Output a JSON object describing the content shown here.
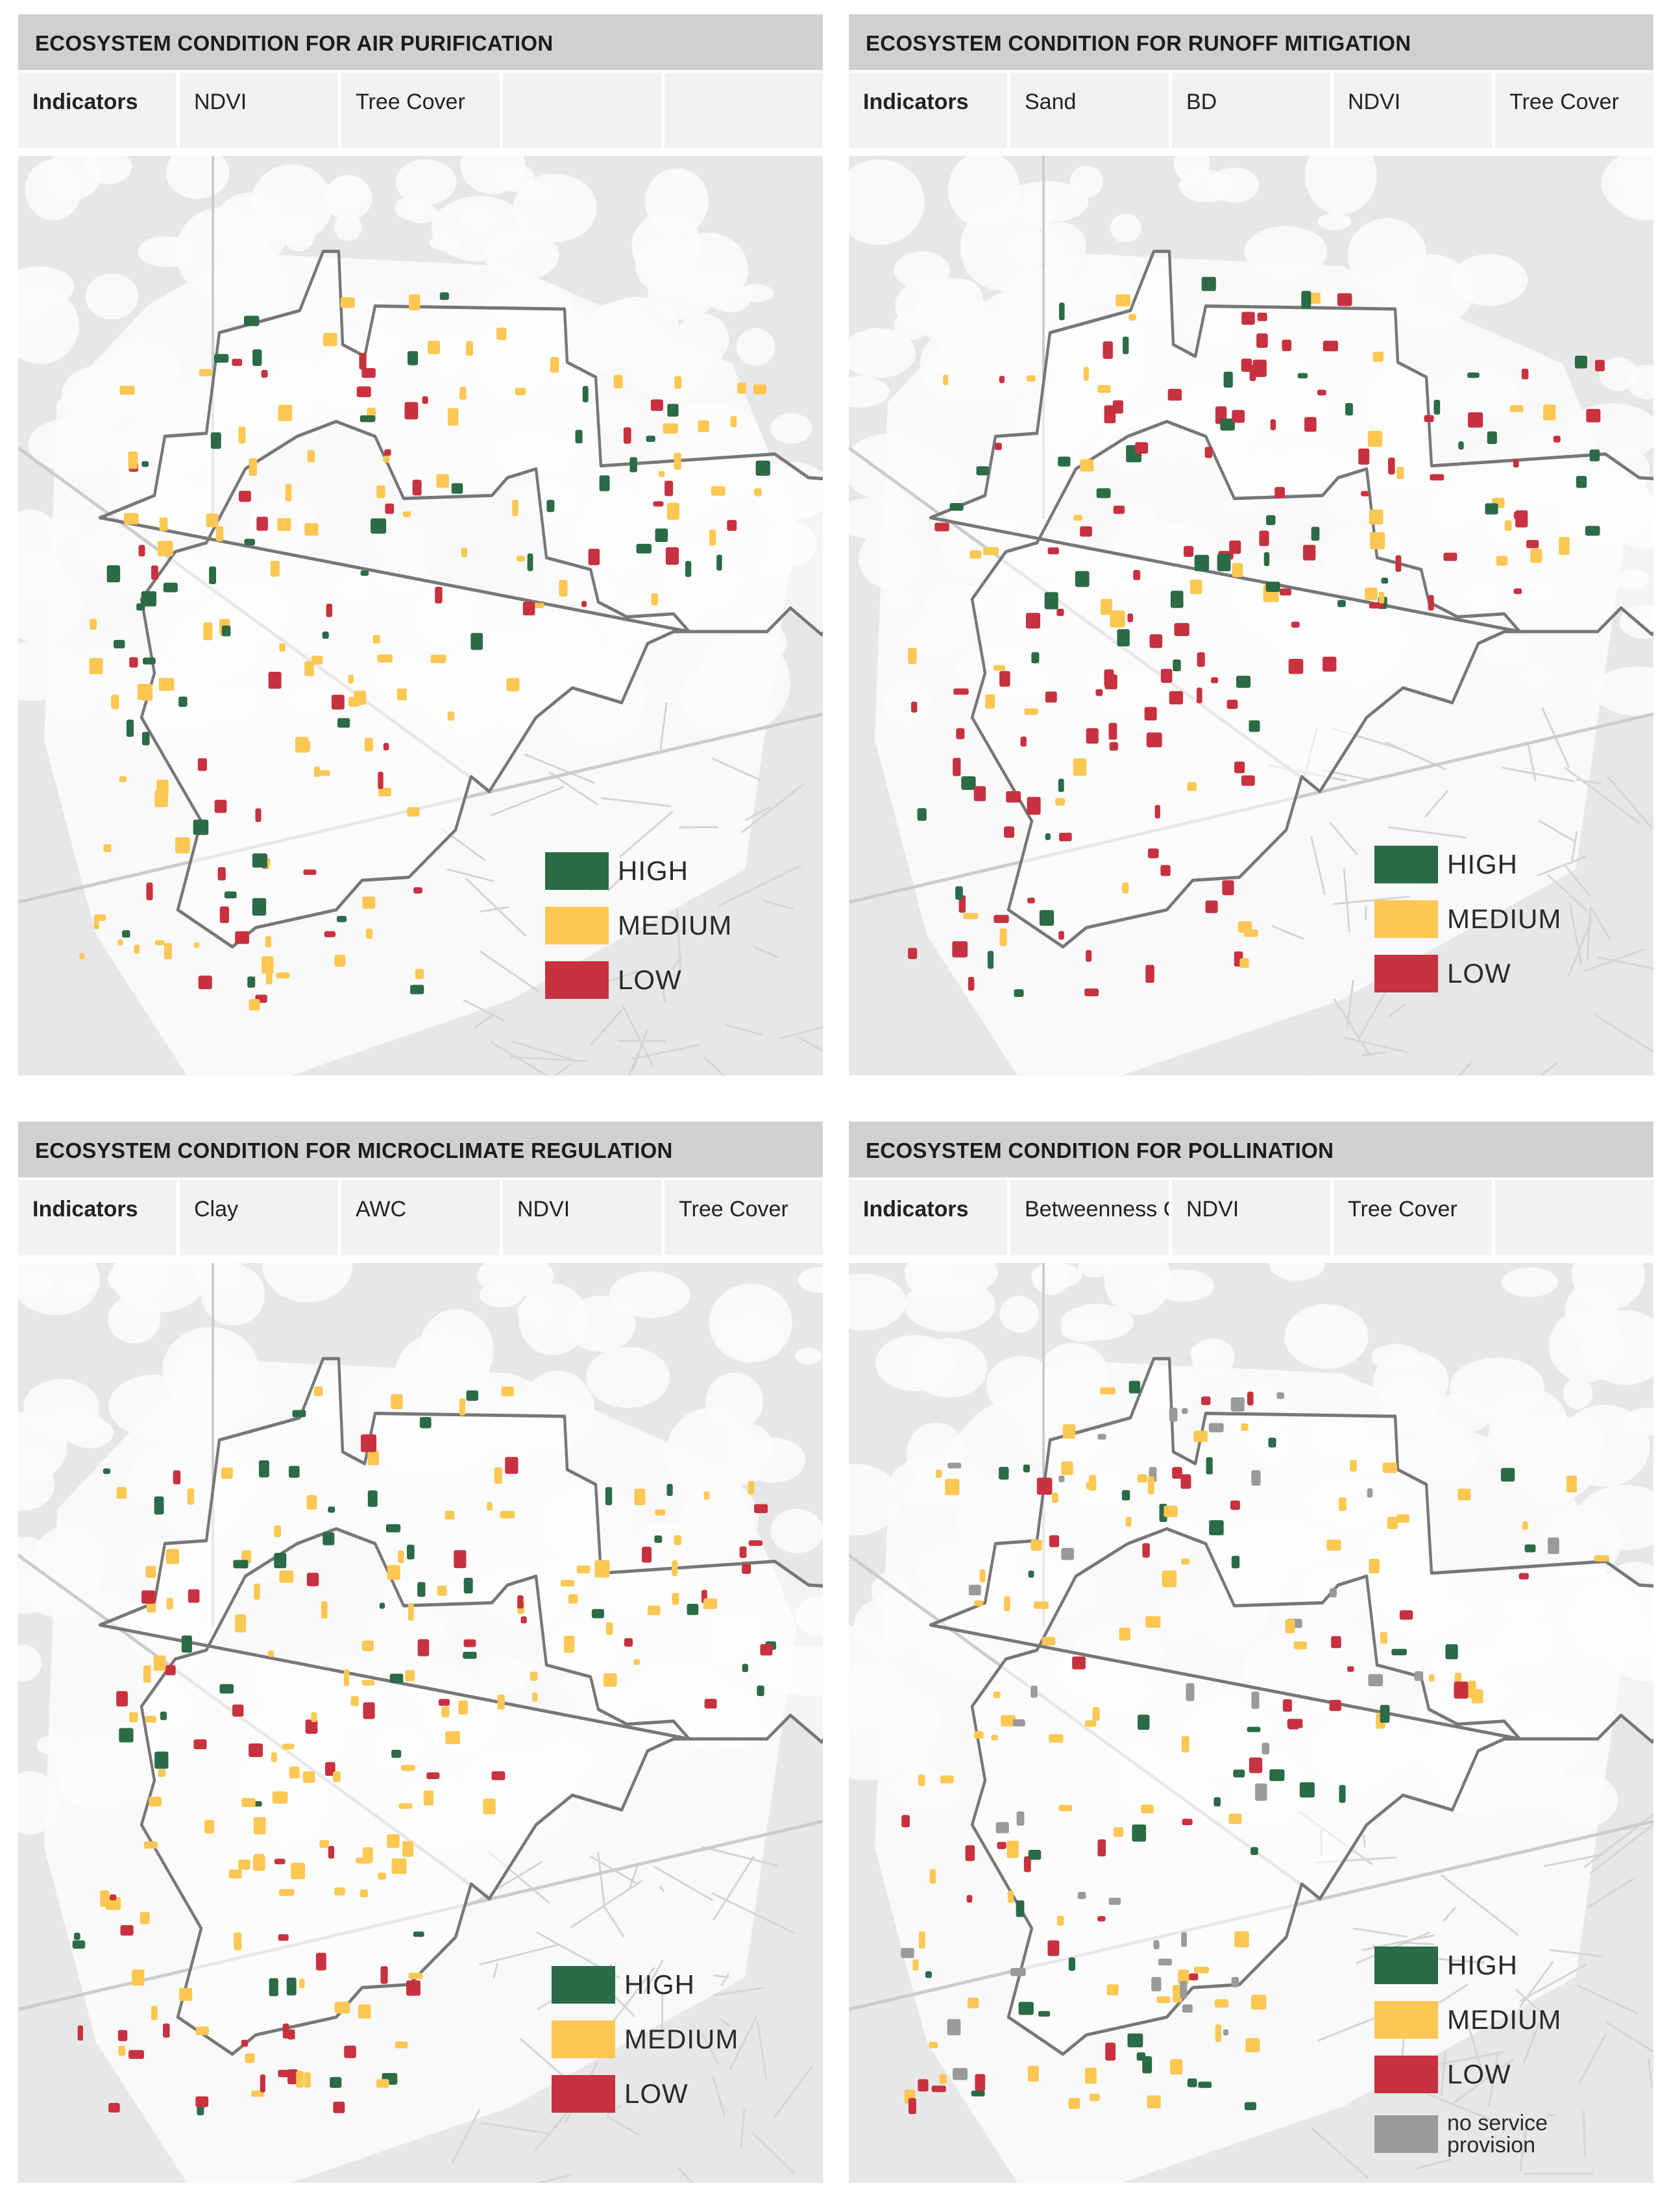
{
  "colors": {
    "high": "#2b6b45",
    "medium": "#fcc752",
    "low": "#c8313f",
    "none": "#9a9a9a",
    "boundary": "#777777",
    "land": "#e7e7e7",
    "urban": "#fbfbfb"
  },
  "panels": [
    {
      "title": "ECOSYSTEM CONDITION FOR AIR PURIFICATION",
      "indicators_label": "Indicators",
      "indicators": [
        "NDVI",
        "Tree Cover",
        "",
        ""
      ],
      "legend": [
        {
          "label": "HIGH",
          "color_key": "high"
        },
        {
          "label": "MEDIUM",
          "color_key": "medium"
        },
        {
          "label": "LOW",
          "color_key": "low"
        }
      ]
    },
    {
      "title": "ECOSYSTEM CONDITION FOR RUNOFF MITIGATION",
      "indicators_label": "Indicators",
      "indicators": [
        "Sand",
        "BD",
        "NDVI",
        "Tree Cover"
      ],
      "legend": [
        {
          "label": "HIGH",
          "color_key": "high"
        },
        {
          "label": "MEDIUM",
          "color_key": "medium"
        },
        {
          "label": "LOW",
          "color_key": "low"
        }
      ]
    },
    {
      "title": "ECOSYSTEM CONDITION FOR MICROCLIMATE REGULATION",
      "indicators_label": "Indicators",
      "indicators": [
        "Clay",
        "AWC",
        "NDVI",
        "Tree Cover"
      ],
      "legend": [
        {
          "label": "HIGH",
          "color_key": "high"
        },
        {
          "label": "MEDIUM",
          "color_key": "medium"
        },
        {
          "label": "LOW",
          "color_key": "low"
        }
      ]
    },
    {
      "title": "ECOSYSTEM CONDITION FOR POLLINATION",
      "indicators_label": "Indicators",
      "indicators": [
        "Betweenness C.",
        "NDVI",
        "Tree Cover",
        ""
      ],
      "legend": [
        {
          "label": "HIGH",
          "color_key": "high"
        },
        {
          "label": "MEDIUM",
          "color_key": "medium"
        },
        {
          "label": "LOW",
          "color_key": "low"
        },
        {
          "label": "no service provision",
          "color_key": "none"
        }
      ]
    }
  ]
}
